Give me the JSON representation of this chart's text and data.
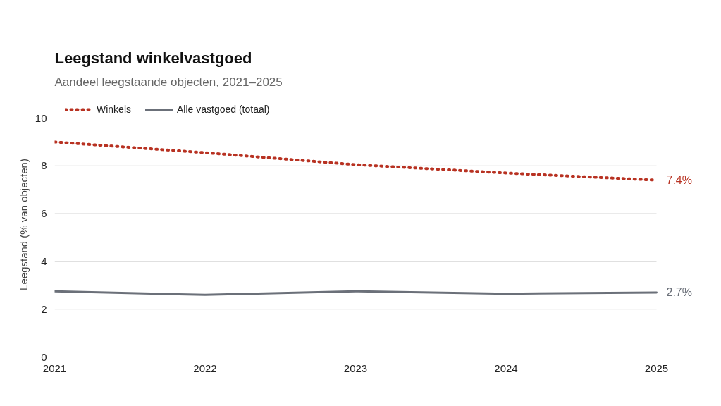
{
  "chart_data": {
    "type": "line",
    "title": "Leegstand winkelvastgoed",
    "subtitle": "Aandeel leegstaande objecten, 2021–2025",
    "ylabel": "Leegstand (% van objecten)",
    "x": [
      2021,
      2022,
      2023,
      2024,
      2025
    ],
    "series": [
      {
        "name": "Winkels",
        "color": "#b83222",
        "line_style": "dotted",
        "values": [
          9.0,
          8.55,
          8.05,
          7.7,
          7.4
        ]
      },
      {
        "name": "Alle vastgoed (totaal)",
        "color": "#6b7079",
        "line_style": "solid",
        "values": [
          2.75,
          2.6,
          2.75,
          2.65,
          2.7
        ]
      }
    ],
    "annotations": [
      {
        "text": "7.4%",
        "x": 2025,
        "y": 7.4
      },
      {
        "text": "2.7%",
        "x": 2025,
        "y": 2.7
      }
    ],
    "xlim": [
      2021,
      2025
    ],
    "xticks": [
      2021,
      2022,
      2023,
      2024,
      2025
    ],
    "ylim": [
      0,
      10
    ],
    "yticks": [
      0,
      2,
      4,
      6,
      8,
      10
    ],
    "grid": "y",
    "legend": "top left",
    "marker": "none"
  }
}
